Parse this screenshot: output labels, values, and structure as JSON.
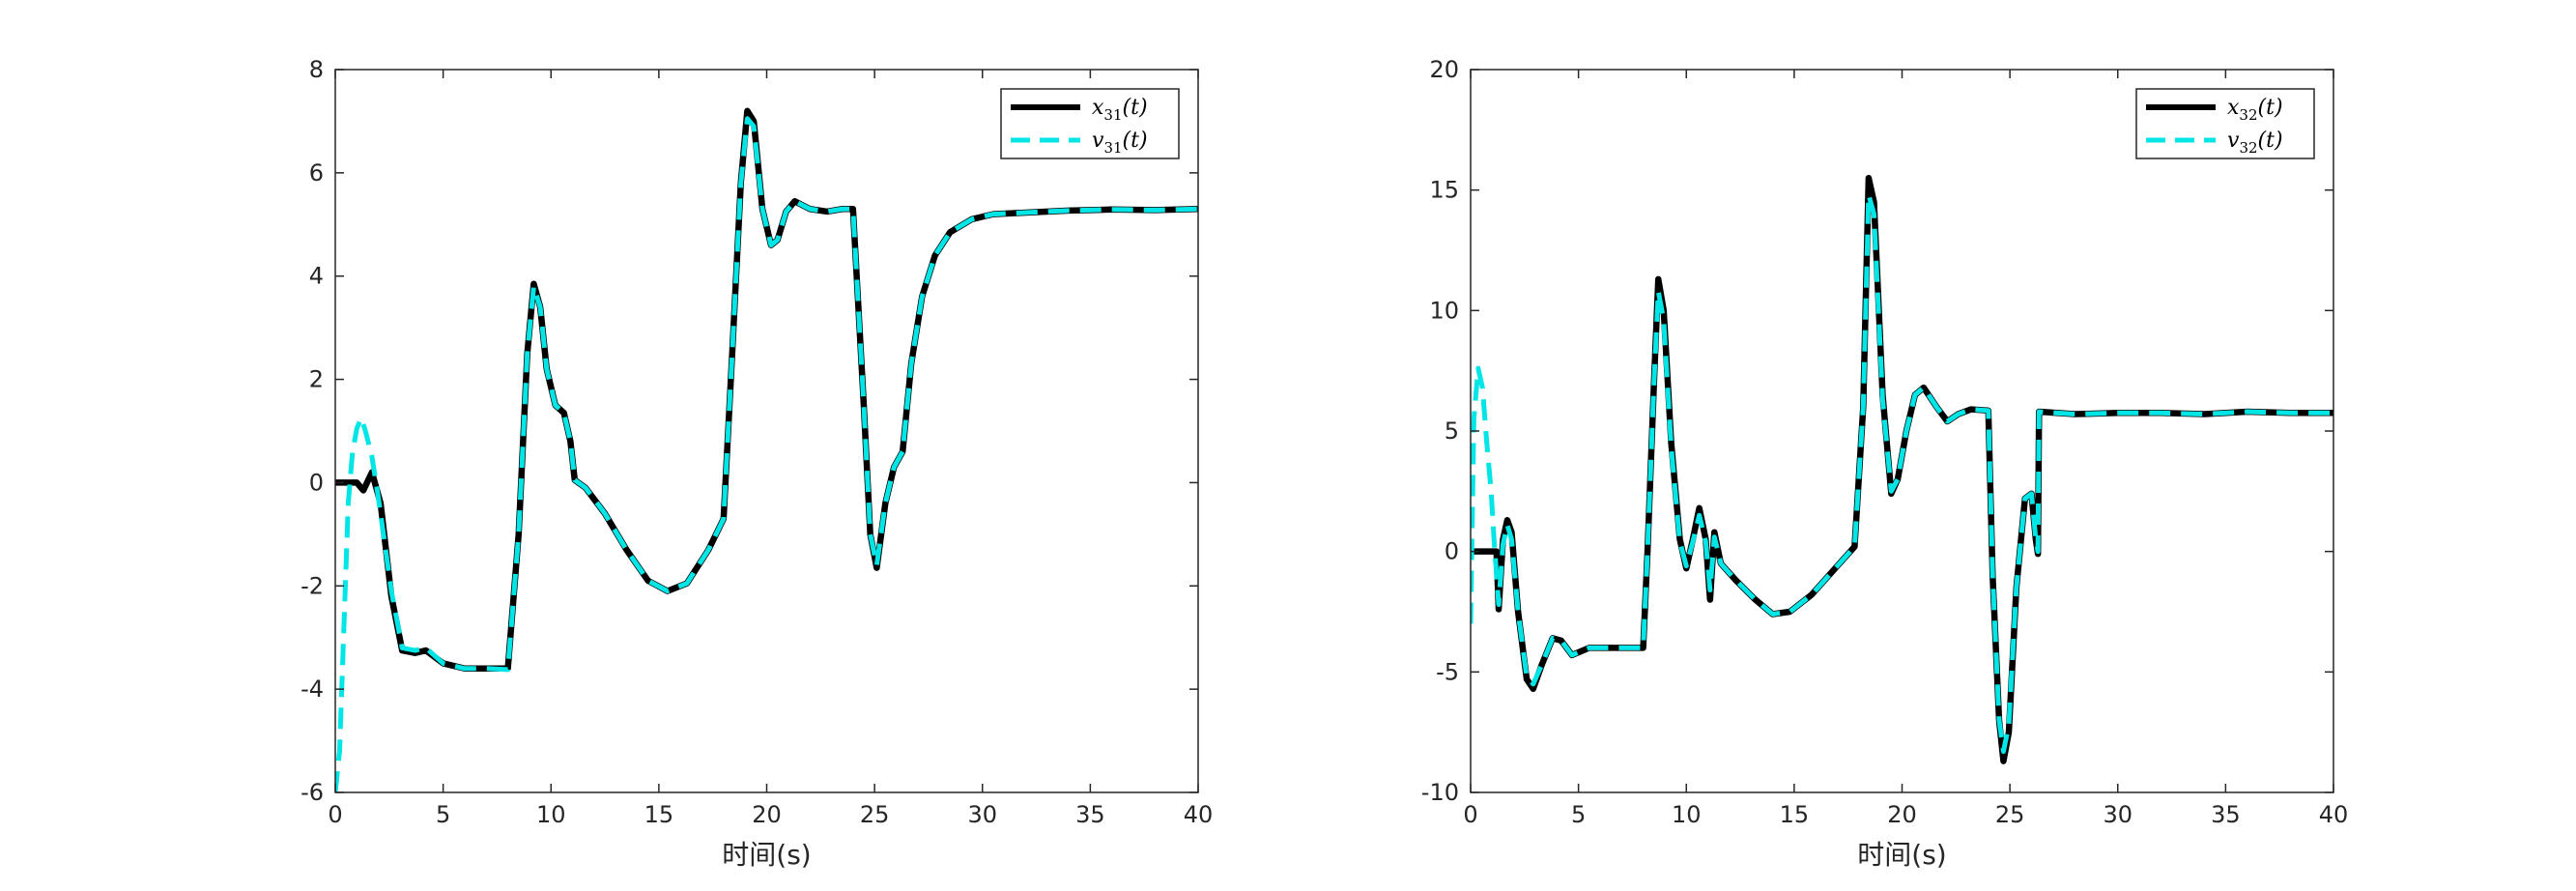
{
  "colors": {
    "x_series": "#000000",
    "v_series": "#00e5e5",
    "axes": "#262626",
    "background": "#ffffff"
  },
  "chart_data": [
    {
      "type": "line",
      "xlabel": "时间(s)",
      "ylabel": "",
      "xlim": [
        0,
        40
      ],
      "ylim": [
        -6,
        8
      ],
      "xticks": [
        0,
        5,
        10,
        15,
        20,
        25,
        30,
        35,
        40
      ],
      "yticks": [
        -6,
        -4,
        -2,
        0,
        2,
        4,
        6,
        8
      ],
      "grid": false,
      "legend_position": "top-right",
      "series": [
        {
          "name": "x31(t)",
          "legend_label": {
            "base": "x",
            "sub": "31",
            "arg": "(t)"
          },
          "style": "solid",
          "color": "#000000",
          "points": [
            [
              0,
              0
            ],
            [
              1,
              0
            ],
            [
              1.3,
              -0.15
            ],
            [
              1.7,
              0.2
            ],
            [
              2.1,
              -0.4
            ],
            [
              2.6,
              -2.2
            ],
            [
              3.1,
              -3.25
            ],
            [
              3.7,
              -3.3
            ],
            [
              4.2,
              -3.25
            ],
            [
              5,
              -3.5
            ],
            [
              6,
              -3.6
            ],
            [
              7,
              -3.6
            ],
            [
              8,
              -3.6
            ],
            [
              8.5,
              -1.0
            ],
            [
              8.9,
              2.5
            ],
            [
              9.2,
              3.85
            ],
            [
              9.5,
              3.4
            ],
            [
              9.8,
              2.2
            ],
            [
              10.2,
              1.5
            ],
            [
              10.6,
              1.35
            ],
            [
              10.9,
              0.8
            ],
            [
              11.1,
              0.05
            ],
            [
              11.6,
              -0.1
            ],
            [
              12.5,
              -0.6
            ],
            [
              13.5,
              -1.3
            ],
            [
              14.5,
              -1.9
            ],
            [
              15.4,
              -2.1
            ],
            [
              16.3,
              -1.95
            ],
            [
              17.3,
              -1.3
            ],
            [
              18.0,
              -0.7
            ],
            [
              18.4,
              2.5
            ],
            [
              18.8,
              5.8
            ],
            [
              19.1,
              7.2
            ],
            [
              19.4,
              7.0
            ],
            [
              19.8,
              5.3
            ],
            [
              20.2,
              4.6
            ],
            [
              20.5,
              4.7
            ],
            [
              20.9,
              5.25
            ],
            [
              21.3,
              5.45
            ],
            [
              22,
              5.3
            ],
            [
              22.8,
              5.25
            ],
            [
              23.5,
              5.3
            ],
            [
              24,
              5.3
            ],
            [
              24.5,
              1.5
            ],
            [
              24.8,
              -1.0
            ],
            [
              25.1,
              -1.65
            ],
            [
              25.5,
              -0.4
            ],
            [
              25.9,
              0.3
            ],
            [
              26.3,
              0.6
            ],
            [
              26.7,
              2.3
            ],
            [
              27.2,
              3.6
            ],
            [
              27.8,
              4.4
            ],
            [
              28.5,
              4.85
            ],
            [
              29.5,
              5.1
            ],
            [
              30.5,
              5.2
            ],
            [
              32,
              5.23
            ],
            [
              34,
              5.27
            ],
            [
              36,
              5.29
            ],
            [
              38,
              5.28
            ],
            [
              40,
              5.3
            ]
          ]
        },
        {
          "name": "v31(t)",
          "legend_label": {
            "base": "v",
            "sub": "31",
            "arg": "(t)"
          },
          "style": "dashed",
          "color": "#00e5e5",
          "points": [
            [
              0,
              -6
            ],
            [
              0.2,
              -5.2
            ],
            [
              0.4,
              -2.8
            ],
            [
              0.6,
              -0.4
            ],
            [
              0.8,
              0.6
            ],
            [
              1.0,
              1.05
            ],
            [
              1.2,
              1.25
            ],
            [
              1.4,
              1.0
            ],
            [
              1.7,
              0.5
            ],
            [
              2.0,
              -0.3
            ],
            [
              2.6,
              -2.1
            ],
            [
              3.1,
              -3.2
            ],
            [
              3.7,
              -3.25
            ],
            [
              4.2,
              -3.2
            ],
            [
              5,
              -3.5
            ],
            [
              6,
              -3.6
            ],
            [
              7,
              -3.6
            ],
            [
              8,
              -3.62
            ],
            [
              8.5,
              -1.0
            ],
            [
              8.9,
              2.5
            ],
            [
              9.2,
              3.8
            ],
            [
              9.5,
              3.4
            ],
            [
              9.8,
              2.2
            ],
            [
              10.2,
              1.5
            ],
            [
              10.6,
              1.35
            ],
            [
              10.9,
              0.8
            ],
            [
              11.1,
              0.05
            ],
            [
              11.6,
              -0.1
            ],
            [
              12.5,
              -0.6
            ],
            [
              13.5,
              -1.3
            ],
            [
              14.5,
              -1.9
            ],
            [
              15.4,
              -2.1
            ],
            [
              16.3,
              -1.95
            ],
            [
              17.3,
              -1.3
            ],
            [
              18.0,
              -0.7
            ],
            [
              18.4,
              2.5
            ],
            [
              18.8,
              5.8
            ],
            [
              19.1,
              7.05
            ],
            [
              19.4,
              6.9
            ],
            [
              19.8,
              5.3
            ],
            [
              20.2,
              4.6
            ],
            [
              20.5,
              4.7
            ],
            [
              20.9,
              5.25
            ],
            [
              21.3,
              5.45
            ],
            [
              22,
              5.3
            ],
            [
              22.8,
              5.25
            ],
            [
              23.5,
              5.3
            ],
            [
              24,
              5.3
            ],
            [
              24.5,
              1.5
            ],
            [
              24.8,
              -1.0
            ],
            [
              25.1,
              -1.6
            ],
            [
              25.5,
              -0.4
            ],
            [
              25.9,
              0.3
            ],
            [
              26.3,
              0.6
            ],
            [
              26.7,
              2.3
            ],
            [
              27.2,
              3.6
            ],
            [
              27.8,
              4.4
            ],
            [
              28.5,
              4.85
            ],
            [
              29.5,
              5.1
            ],
            [
              30.5,
              5.2
            ],
            [
              32,
              5.23
            ],
            [
              34,
              5.27
            ],
            [
              36,
              5.29
            ],
            [
              38,
              5.28
            ],
            [
              40,
              5.3
            ]
          ]
        }
      ]
    },
    {
      "type": "line",
      "xlabel": "时间(s)",
      "ylabel": "",
      "xlim": [
        0,
        40
      ],
      "ylim": [
        -10,
        20
      ],
      "xticks": [
        0,
        5,
        10,
        15,
        20,
        25,
        30,
        35,
        40
      ],
      "yticks": [
        -10,
        -5,
        0,
        5,
        10,
        15,
        20
      ],
      "grid": false,
      "legend_position": "top-right",
      "series": [
        {
          "name": "x32(t)",
          "legend_label": {
            "base": "x",
            "sub": "32",
            "arg": "(t)"
          },
          "style": "solid",
          "color": "#000000",
          "points": [
            [
              0,
              0
            ],
            [
              1.2,
              0
            ],
            [
              1.3,
              -2.4
            ],
            [
              1.5,
              0.5
            ],
            [
              1.7,
              1.3
            ],
            [
              1.9,
              0.8
            ],
            [
              2.2,
              -2.5
            ],
            [
              2.6,
              -5.3
            ],
            [
              2.9,
              -5.7
            ],
            [
              3.3,
              -4.7
            ],
            [
              3.8,
              -3.6
            ],
            [
              4.2,
              -3.7
            ],
            [
              4.7,
              -4.3
            ],
            [
              5.5,
              -4.0
            ],
            [
              6.5,
              -4.0
            ],
            [
              7.5,
              -4.0
            ],
            [
              8.0,
              -4.0
            ],
            [
              8.2,
              0
            ],
            [
              8.5,
              7
            ],
            [
              8.7,
              11.3
            ],
            [
              8.95,
              10.0
            ],
            [
              9.3,
              4.5
            ],
            [
              9.7,
              0.5
            ],
            [
              10.0,
              -0.7
            ],
            [
              10.3,
              0.5
            ],
            [
              10.6,
              1.8
            ],
            [
              10.9,
              0.5
            ],
            [
              11.1,
              -2.0
            ],
            [
              11.3,
              0.8
            ],
            [
              11.6,
              -0.5
            ],
            [
              12.3,
              -1.2
            ],
            [
              13.2,
              -2.0
            ],
            [
              14.0,
              -2.6
            ],
            [
              14.8,
              -2.5
            ],
            [
              15.8,
              -1.8
            ],
            [
              17.0,
              -0.6
            ],
            [
              17.8,
              0.2
            ],
            [
              18.2,
              6
            ],
            [
              18.45,
              15.5
            ],
            [
              18.7,
              14.5
            ],
            [
              19.1,
              6.5
            ],
            [
              19.5,
              2.4
            ],
            [
              19.8,
              3.0
            ],
            [
              20.2,
              5.0
            ],
            [
              20.6,
              6.5
            ],
            [
              21.0,
              6.8
            ],
            [
              21.6,
              6.0
            ],
            [
              22.1,
              5.4
            ],
            [
              22.6,
              5.7
            ],
            [
              23.2,
              5.9
            ],
            [
              24.0,
              5.85
            ],
            [
              24.2,
              -1
            ],
            [
              24.5,
              -7
            ],
            [
              24.7,
              -8.7
            ],
            [
              24.95,
              -7.5
            ],
            [
              25.3,
              -1.5
            ],
            [
              25.7,
              2.2
            ],
            [
              26.0,
              2.4
            ],
            [
              26.2,
              0.5
            ],
            [
              26.3,
              -0.1
            ],
            [
              26.35,
              5.8
            ],
            [
              28,
              5.7
            ],
            [
              30,
              5.75
            ],
            [
              32,
              5.75
            ],
            [
              34,
              5.7
            ],
            [
              36,
              5.8
            ],
            [
              38,
              5.75
            ],
            [
              40,
              5.75
            ]
          ]
        },
        {
          "name": "v32(t)",
          "legend_label": {
            "base": "v",
            "sub": "32",
            "arg": "(t)"
          },
          "style": "dashed",
          "color": "#00e5e5",
          "points": [
            [
              0,
              -3
            ],
            [
              0.15,
              5.5
            ],
            [
              0.35,
              7.6
            ],
            [
              0.55,
              6.8
            ],
            [
              0.75,
              4.5
            ],
            [
              0.95,
              2.5
            ],
            [
              1.1,
              0.3
            ],
            [
              1.3,
              -2.2
            ],
            [
              1.5,
              0.3
            ],
            [
              1.7,
              1.1
            ],
            [
              1.9,
              0.5
            ],
            [
              2.2,
              -2.5
            ],
            [
              2.6,
              -5.2
            ],
            [
              2.9,
              -5.5
            ],
            [
              3.3,
              -4.7
            ],
            [
              3.8,
              -3.6
            ],
            [
              4.2,
              -3.7
            ],
            [
              4.7,
              -4.3
            ],
            [
              5.5,
              -4.0
            ],
            [
              6.5,
              -4.0
            ],
            [
              7.5,
              -4.0
            ],
            [
              8.0,
              -4.0
            ],
            [
              8.2,
              0
            ],
            [
              8.5,
              7
            ],
            [
              8.7,
              10.8
            ],
            [
              8.95,
              9.6
            ],
            [
              9.3,
              4.3
            ],
            [
              9.7,
              0.4
            ],
            [
              10.0,
              -0.6
            ],
            [
              10.3,
              0.4
            ],
            [
              10.6,
              1.5
            ],
            [
              10.9,
              0.4
            ],
            [
              11.1,
              -1.6
            ],
            [
              11.3,
              0.6
            ],
            [
              11.6,
              -0.5
            ],
            [
              12.3,
              -1.2
            ],
            [
              13.2,
              -2.0
            ],
            [
              14.0,
              -2.6
            ],
            [
              14.8,
              -2.5
            ],
            [
              15.8,
              -1.8
            ],
            [
              17.0,
              -0.6
            ],
            [
              17.8,
              0.2
            ],
            [
              18.2,
              6
            ],
            [
              18.45,
              14.8
            ],
            [
              18.7,
              14.0
            ],
            [
              19.1,
              6.3
            ],
            [
              19.5,
              2.5
            ],
            [
              19.8,
              3.0
            ],
            [
              20.2,
              5.0
            ],
            [
              20.6,
              6.5
            ],
            [
              21.0,
              6.8
            ],
            [
              21.6,
              6.0
            ],
            [
              22.1,
              5.4
            ],
            [
              22.6,
              5.7
            ],
            [
              23.2,
              5.9
            ],
            [
              24.0,
              5.85
            ],
            [
              24.2,
              -1
            ],
            [
              24.5,
              -7
            ],
            [
              24.7,
              -8.3
            ],
            [
              24.95,
              -7.2
            ],
            [
              25.3,
              -1.5
            ],
            [
              25.7,
              2.2
            ],
            [
              26.0,
              2.4
            ],
            [
              26.2,
              0.5
            ],
            [
              26.3,
              0
            ],
            [
              26.35,
              5.8
            ],
            [
              28,
              5.7
            ],
            [
              30,
              5.75
            ],
            [
              32,
              5.75
            ],
            [
              34,
              5.7
            ],
            [
              36,
              5.8
            ],
            [
              38,
              5.75
            ],
            [
              40,
              5.75
            ]
          ]
        }
      ]
    }
  ]
}
